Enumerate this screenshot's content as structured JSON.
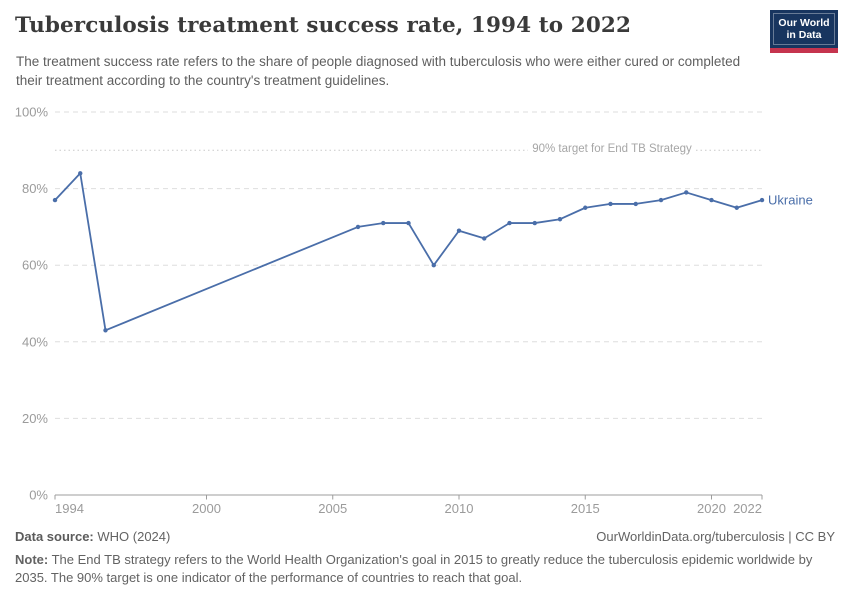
{
  "header": {
    "title": "Tuberculosis treatment success rate, 1994 to 2022",
    "subtitle": "The treatment success rate refers to the share of people diagnosed with tuberculosis who were either cured or completed their treatment according to the country's treatment guidelines.",
    "logo": {
      "line1": "Our World",
      "line2": "in Data"
    }
  },
  "colors": {
    "series_blue": "#4a6ea9",
    "logo_navy": "#18355f",
    "logo_red": "#c5344e",
    "grid_gray": "#dedede",
    "axis_gray": "#9c9c9c"
  },
  "chart_data": {
    "type": "line",
    "title": "Tuberculosis treatment success rate, 1994 to 2022",
    "xlabel": "",
    "ylabel": "",
    "xlim": [
      1994,
      2022
    ],
    "ylim": [
      0,
      100
    ],
    "x_ticks": [
      1994,
      2000,
      2005,
      2010,
      2015,
      2020,
      2022
    ],
    "y_ticks": [
      0,
      20,
      40,
      60,
      80,
      100
    ],
    "y_tick_suffix": "%",
    "grid": "horizontal-dashed",
    "legend_position": "end-of-line",
    "target_line": {
      "value": 90,
      "label": "90% target for End TB Strategy"
    },
    "series": [
      {
        "name": "Ukraine",
        "color": "#4a6ea9",
        "points": [
          [
            1994,
            77
          ],
          [
            1995,
            84
          ],
          [
            1996,
            43
          ],
          [
            2006,
            70
          ],
          [
            2007,
            71
          ],
          [
            2008,
            71
          ],
          [
            2009,
            60
          ],
          [
            2010,
            69
          ],
          [
            2011,
            67
          ],
          [
            2012,
            71
          ],
          [
            2013,
            71
          ],
          [
            2014,
            72
          ],
          [
            2015,
            75
          ],
          [
            2016,
            76
          ],
          [
            2017,
            76
          ],
          [
            2018,
            77
          ],
          [
            2019,
            79
          ],
          [
            2020,
            77
          ],
          [
            2021,
            75
          ],
          [
            2022,
            77
          ]
        ]
      }
    ]
  },
  "footer": {
    "source_label": "Data source:",
    "source_value": "WHO (2024)",
    "url": "OurWorldinData.org/tuberculosis",
    "pipe": "|",
    "license": "CC BY",
    "note_label": "Note:",
    "note_text": "The End TB strategy refers to the World Health Organization's goal in 2015 to greatly reduce the tuberculosis epidemic worldwide by 2035. The 90% target is one indicator of the performance of countries to reach that goal."
  }
}
